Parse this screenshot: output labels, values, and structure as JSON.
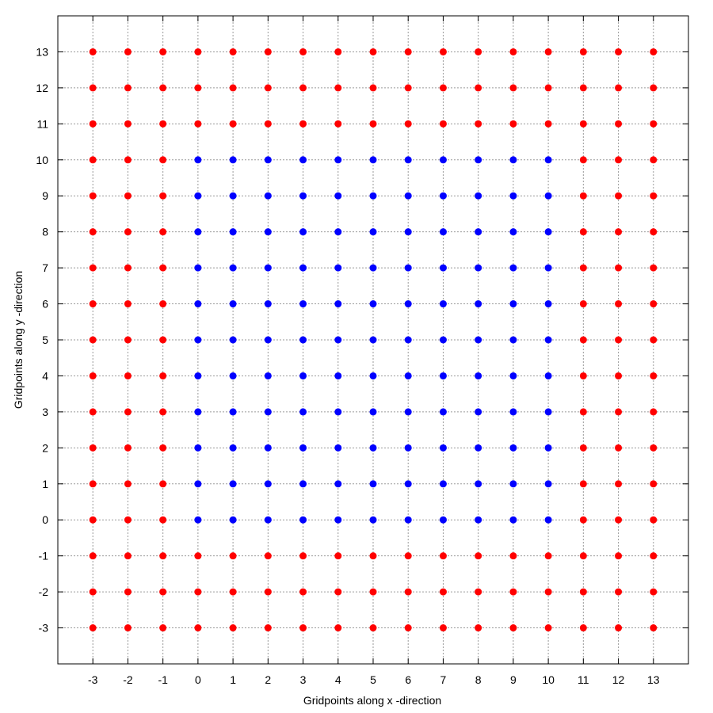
{
  "chart_data": {
    "type": "scatter",
    "title": "",
    "xlabel": "Gridpoints along  x -direction",
    "ylabel": "Gridpoints along  y -direction",
    "xlim": [
      -4,
      14
    ],
    "ylim": [
      -4,
      14
    ],
    "x_ticks": [
      -3,
      -2,
      -1,
      0,
      1,
      2,
      3,
      4,
      5,
      6,
      7,
      8,
      9,
      10,
      11,
      12,
      13
    ],
    "y_ticks": [
      -3,
      -2,
      -1,
      0,
      1,
      2,
      3,
      4,
      5,
      6,
      7,
      8,
      9,
      10,
      11,
      12,
      13
    ],
    "grid": true,
    "legend": "none",
    "grid_points": {
      "x_range": [
        -3,
        13
      ],
      "y_range": [
        -3,
        13
      ]
    },
    "series": [
      {
        "role": "interior",
        "color": "#0000ff",
        "x_range": [
          0,
          10
        ],
        "y_range": [
          0,
          10
        ]
      },
      {
        "role": "boundary",
        "color": "#ff0000",
        "region": "all grid points outside the interior block"
      }
    ]
  }
}
